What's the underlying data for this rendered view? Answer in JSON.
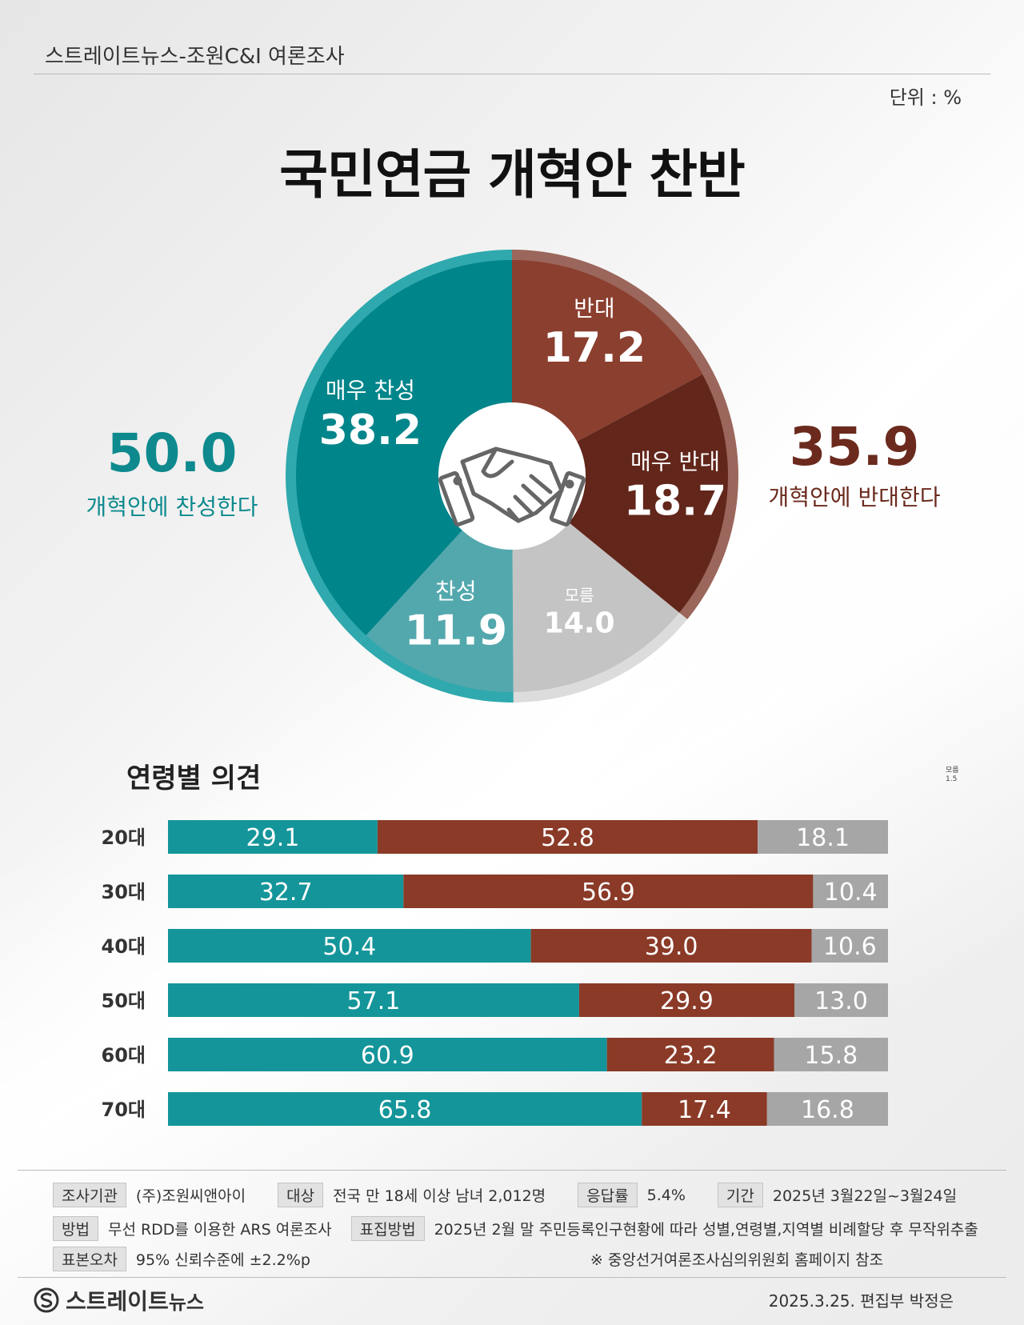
{
  "header": {
    "source": "스트레이트뉴스-조원C&I 여론조사",
    "unit": "단위 : %",
    "title": "국민연금 개혁안 찬반"
  },
  "summary": {
    "favor": {
      "value": "50.0",
      "label": "개혁안에 찬성한다",
      "color": "#0e8a8e"
    },
    "oppose": {
      "value": "35.9",
      "label": "개혁안에 반대한다",
      "color": "#6b2a1d"
    }
  },
  "chart_data": [
    {
      "type": "pie",
      "title": "국민연금 개혁안 찬반",
      "slices": [
        {
          "label": "반대",
          "value": 17.2,
          "color": "#8b3f2f"
        },
        {
          "label": "매우 반대",
          "value": 18.7,
          "color": "#62261b"
        },
        {
          "label": "모름",
          "value": 14.0,
          "color": "#c4c4c4"
        },
        {
          "label": "찬성",
          "value": 11.9,
          "color": "#53a8ad"
        },
        {
          "label": "매우 찬성",
          "value": 38.2,
          "color": "#00858a"
        }
      ],
      "display_values": [
        "17.2",
        "18.7",
        "14.0",
        "11.9",
        "38.2"
      ]
    },
    {
      "type": "bar",
      "title": "연령별 의견",
      "orientation": "horizontal-stacked",
      "categories": [
        "20대",
        "30대",
        "40대",
        "50대",
        "60대",
        "70대"
      ],
      "series": [
        {
          "values": [
            29.1,
            32.7,
            50.4,
            57.1,
            60.9,
            65.8
          ],
          "color": "#14959a"
        },
        {
          "values": [
            52.8,
            56.9,
            39.0,
            29.9,
            23.2,
            17.4
          ],
          "color": "#8a3a27"
        },
        {
          "values": [
            18.1,
            10.4,
            10.6,
            13.0,
            15.8,
            16.8
          ],
          "color": "#a6a6a6"
        }
      ],
      "display_values": [
        [
          "29.1",
          "32.7",
          "50.4",
          "57.1",
          "60.9",
          "65.8"
        ],
        [
          "52.8",
          "56.9",
          "39.0",
          "29.9",
          "23.2",
          "17.4"
        ],
        [
          "18.1",
          "10.4",
          "10.6",
          "13.0",
          "15.8",
          "16.8"
        ]
      ],
      "note": [
        "모름",
        "1.5"
      ]
    }
  ],
  "age_title": "연령별 의견",
  "info": {
    "agency_label": "조사기관",
    "agency": "(주)조원씨앤아이",
    "target_label": "대상",
    "target": "전국 만 18세 이상 남녀 2,012명",
    "response_label": "응답률",
    "response": "5.4%",
    "period_label": "기간",
    "period": "2025년 3월22일~3월24일",
    "method_label": "방법",
    "method": "무선 RDD를 이용한 ARS 여론조사",
    "sampling_label": "표집방법",
    "sampling": "2025년 2월 말 주민등록인구현황에 따라 성별,연령별,지역별 비례할당 후 무작위추출",
    "error_label": "표본오차",
    "error": "95% 신뢰수준에 ±2.2%p",
    "reference": "※ 중앙선거여론조사심의위원회 홈페이지 참조"
  },
  "footer": {
    "logo_main": "스트레이트",
    "logo_sub": "뉴스",
    "credit": "2025.3.25. 편집부 박정은"
  }
}
